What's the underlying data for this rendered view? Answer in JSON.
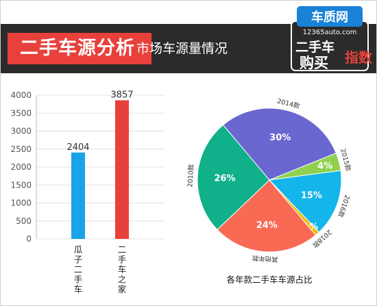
{
  "header": {
    "section_title": "二手车源分析",
    "section_subtitle": "市场车源量情况",
    "logo": {
      "brand": "车质网",
      "site": "12365auto.com",
      "line1": "二手车",
      "line2": "购买",
      "badge": "指数"
    }
  },
  "colors": {
    "header_band": "#2b2b2b",
    "title_red": "#e8413c",
    "bar_blue": "#1aa3e8",
    "bar_red": "#e8413c",
    "slice_2014": "#6a67d0",
    "slice_2015": "#8fd14f",
    "slice_2016": "#13b5ea",
    "slice_2018": "#f2b807",
    "slice_other": "#f86a54",
    "slice_2010": "#0fb08a"
  },
  "chart_data": [
    {
      "type": "bar",
      "title": "",
      "categories": [
        "瓜子二手车",
        "二手车之家"
      ],
      "values": [
        2404,
        3857
      ],
      "ylim": [
        0,
        4000
      ],
      "yticks": [
        0,
        500,
        1000,
        1500,
        2000,
        2500,
        3000,
        3500,
        4000
      ],
      "grid": true,
      "legend": "none"
    },
    {
      "type": "pie",
      "title": "各年款二手车车源占比",
      "slices": [
        {
          "label": "2014款",
          "value": 30,
          "text": "30%"
        },
        {
          "label": "2015款",
          "value": 4,
          "text": "4%"
        },
        {
          "label": "2016款",
          "value": 15,
          "text": "15%"
        },
        {
          "label": "2018款",
          "value": 1,
          "text": "1%"
        },
        {
          "label": "其他年款",
          "value": 24,
          "text": "24%"
        },
        {
          "label": "2010款",
          "value": 26,
          "text": "26%"
        }
      ],
      "legend": "none"
    }
  ]
}
